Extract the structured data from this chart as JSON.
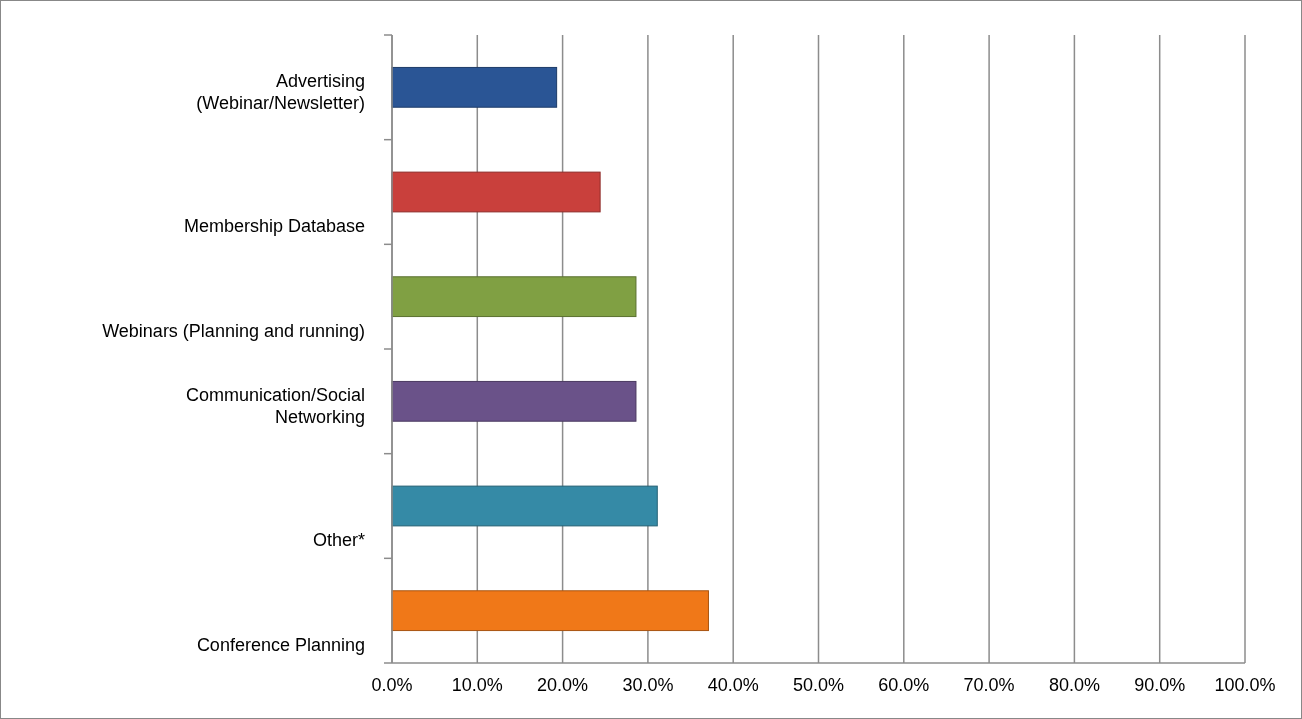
{
  "chart_data": {
    "type": "bar",
    "orientation": "horizontal",
    "categories": [
      "Advertising\n(Webinar/Newsletter)",
      "Membership Database",
      "Webinars (Planning and running)",
      "Communication/Social\nNetworking",
      "Other*",
      "Conference Planning"
    ],
    "values": [
      19.3,
      24.4,
      28.6,
      28.6,
      31.1,
      37.1
    ],
    "colors": [
      "#2a5595",
      "#c9403c",
      "#80a043",
      "#6a5289",
      "#358aa6",
      "#f07818"
    ],
    "xlim": [
      0,
      100
    ],
    "xticks": [
      {
        "value": 0,
        "label": "0.0%"
      },
      {
        "value": 10,
        "label": "10.0%"
      },
      {
        "value": 20,
        "label": "20.0%"
      },
      {
        "value": 30,
        "label": "30.0%"
      },
      {
        "value": 40,
        "label": "40.0%"
      },
      {
        "value": 50,
        "label": "50.0%"
      },
      {
        "value": 60,
        "label": "60.0%"
      },
      {
        "value": 70,
        "label": "70.0%"
      },
      {
        "value": 80,
        "label": "80.0%"
      },
      {
        "value": 90,
        "label": "90.0%"
      },
      {
        "value": 100,
        "label": "100.0%"
      }
    ],
    "grid": "x"
  }
}
